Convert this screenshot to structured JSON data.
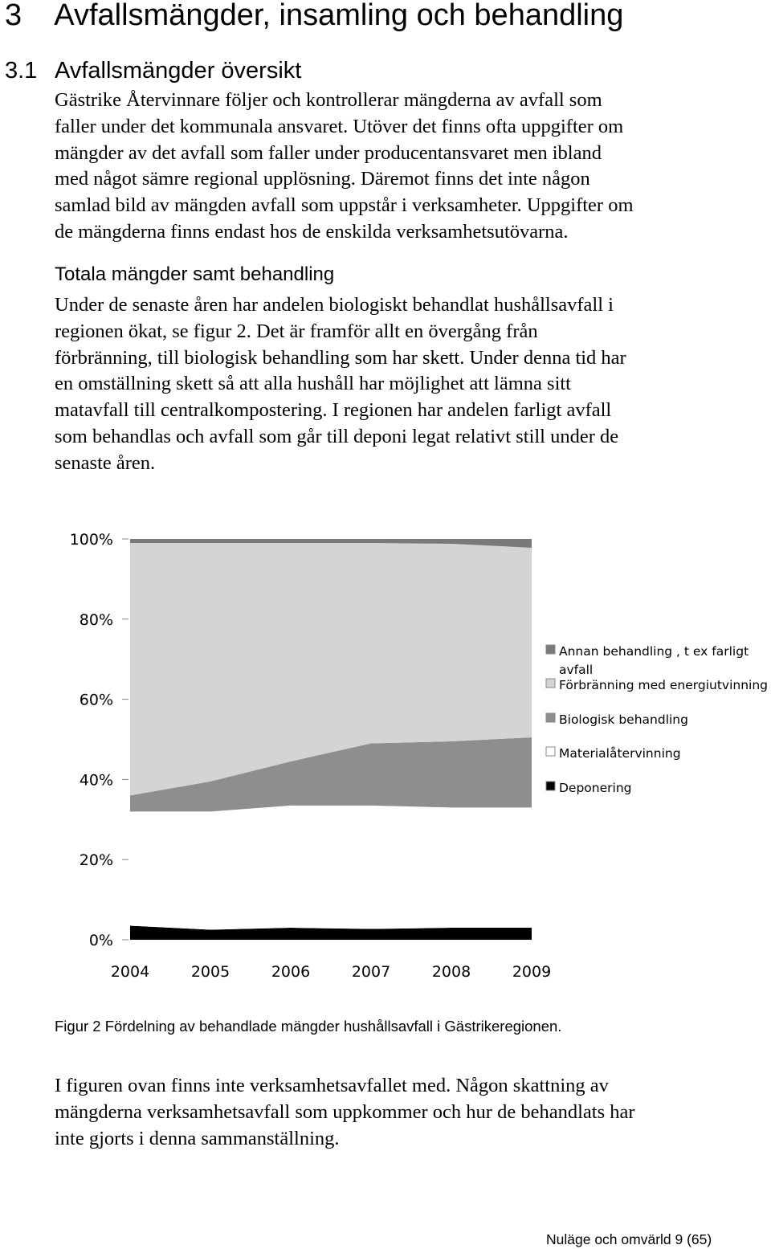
{
  "heading": {
    "number": "3",
    "title": "Avfallsmängder, insamling och behandling"
  },
  "section": {
    "number": "3.1",
    "title": "Avfallsmängder översikt"
  },
  "paragraph1": [
    "Gästrike Återvinnare följer och kontrollerar mängderna av avfall som",
    "faller under det kommunala ansvaret. Utöver det finns ofta uppgifter om",
    "mängder av det avfall som faller under producentansvaret men ibland",
    "med något sämre regional upplösning. Däremot finns det inte någon",
    "samlad bild av mängden avfall som uppstår i verksamheter. Uppgifter om",
    "de mängderna finns endast hos de enskilda verksamhetsutövarna."
  ],
  "subheading": "Totala mängder samt behandling",
  "paragraph2": [
    "Under de senaste åren har andelen biologiskt behandlat hushållsavfall i",
    "regionen ökat, se figur 2. Det är framför allt en övergång från",
    "förbränning, till biologisk behandling som har skett. Under denna tid har",
    "en omställning skett så att alla hushåll har möjlighet att lämna sitt",
    "matavfall till centralkompostering. I regionen har andelen farligt avfall",
    "som behandlas och avfall som går till deponi legat relativt still under de",
    "senaste åren."
  ],
  "chart_data": {
    "type": "area",
    "stacked": "percent",
    "title": "",
    "xlabel": "",
    "ylabel": "",
    "categories": [
      "2004",
      "2005",
      "2006",
      "2007",
      "2008",
      "2009"
    ],
    "y_ticks": [
      "0%",
      "20%",
      "40%",
      "60%",
      "80%",
      "100%"
    ],
    "ylim": [
      0,
      100
    ],
    "legend_position": "right",
    "series": [
      {
        "name": "Deponering",
        "color": "#000000",
        "values": [
          3.5,
          2.5,
          3.0,
          2.7,
          3.0,
          3.0
        ]
      },
      {
        "name": "Materialåtervinning",
        "color": "#ffffff",
        "values": [
          28.5,
          29.5,
          30.5,
          30.8,
          30.0,
          30.0
        ]
      },
      {
        "name": "Biologisk behandling",
        "color": "#8e8e8e",
        "values": [
          4.0,
          7.5,
          11.0,
          15.5,
          16.5,
          17.5
        ]
      },
      {
        "name": "Förbränning med energiutvinning",
        "color": "#d4d4d4",
        "values": [
          63.0,
          59.5,
          54.5,
          50.0,
          49.3,
          47.3
        ]
      },
      {
        "name": "Annan behandling , t ex farligt avfall",
        "color": "#7a7a7a",
        "values": [
          1.0,
          1.0,
          1.0,
          1.0,
          1.2,
          2.2
        ]
      }
    ],
    "legend": [
      {
        "label_lines": [
          "Annan behandling , t ex farligt",
          "avfall"
        ],
        "color": "#7a7a7a"
      },
      {
        "label_lines": [
          "Förbränning med energiutvinning"
        ],
        "color": "#d4d4d4"
      },
      {
        "label_lines": [
          "Biologisk behandling"
        ],
        "color": "#8e8e8e"
      },
      {
        "label_lines": [
          "Materialåtervinning"
        ],
        "color": "#ffffff"
      },
      {
        "label_lines": [
          "Deponering"
        ],
        "color": "#000000"
      }
    ]
  },
  "caption": "Figur 2 Fördelning av behandlade mängder hushållsavfall i Gästrikeregionen.",
  "paragraph3": [
    "I figuren ovan finns inte verksamhetsavfallet med. Någon skattning av",
    "mängderna verksamhetsavfall som uppkommer och hur de behandlats har",
    "inte gjorts i denna sammanställning."
  ],
  "footer": "Nuläge och omvärld 9 (65)"
}
